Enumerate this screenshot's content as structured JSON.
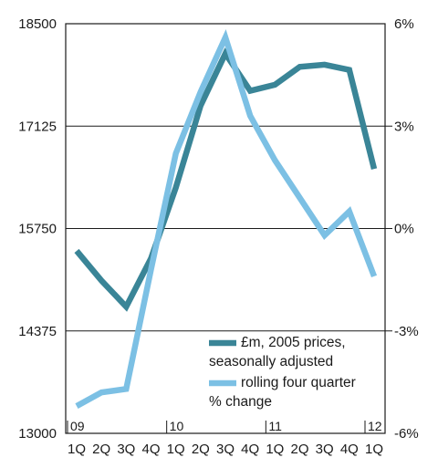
{
  "chart_data": {
    "type": "line",
    "categories": [
      "1Q",
      "2Q",
      "3Q",
      "4Q",
      "1Q",
      "2Q",
      "3Q",
      "4Q",
      "1Q",
      "2Q",
      "3Q",
      "4Q",
      "1Q"
    ],
    "year_markers": [
      {
        "index": 0,
        "label": "09"
      },
      {
        "index": 4,
        "label": "10"
      },
      {
        "index": 8,
        "label": "11"
      },
      {
        "index": 12,
        "label": "12"
      }
    ],
    "left_axis": {
      "ylim": [
        13000,
        18500
      ],
      "ticks": [
        "13000",
        "14375",
        "15750",
        "17125",
        "18500"
      ]
    },
    "right_axis": {
      "ylim": [
        -6,
        6
      ],
      "ticks": [
        "-6%",
        "-3%",
        "0%",
        "3%",
        "6%"
      ]
    },
    "grid": true,
    "legend_position": "bottom-right",
    "series": [
      {
        "name": "£m, 2005 prices, seasonally adjusted",
        "legend_lines": [
          "£m, 2005 prices,",
          "seasonally adjusted"
        ],
        "axis": "left",
        "color": "#3a8597",
        "values": [
          15450,
          15050,
          14700,
          15350,
          16300,
          17400,
          18100,
          17600,
          17680,
          17920,
          17950,
          17880,
          16550
        ]
      },
      {
        "name": "rolling four quarter % change",
        "legend_lines": [
          "rolling four quarter",
          "% change"
        ],
        "axis": "right",
        "color": "#7cc0e4",
        "values": [
          -5.2,
          -4.8,
          -4.7,
          -1.2,
          2.2,
          4.0,
          5.6,
          3.3,
          2.0,
          0.9,
          -0.2,
          0.5,
          -1.4
        ]
      }
    ]
  }
}
